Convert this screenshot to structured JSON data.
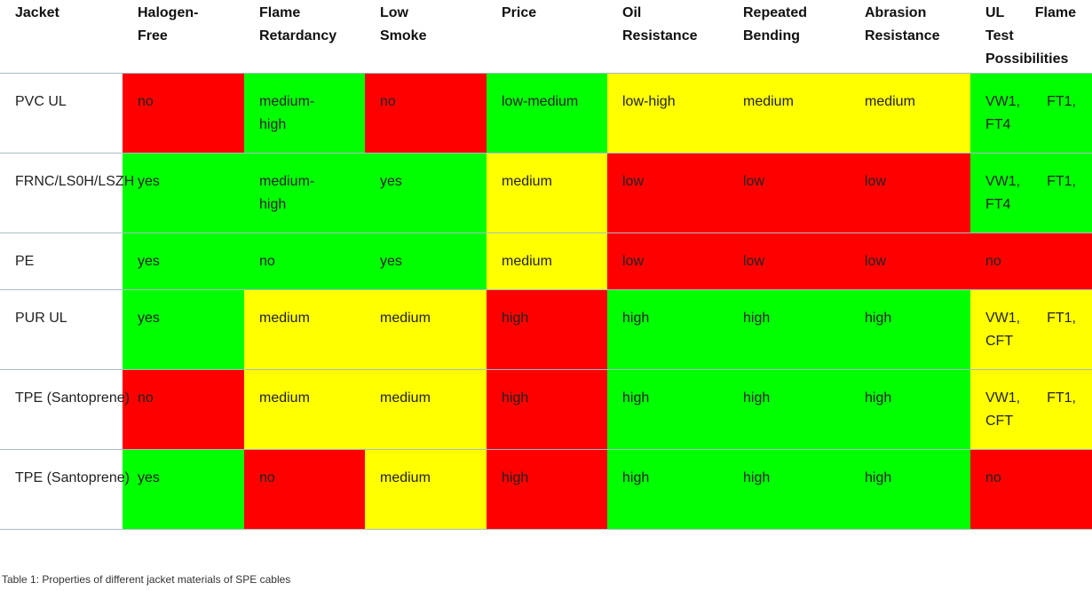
{
  "table": {
    "header": [
      "Jacket",
      "Halogen-Free",
      "Flame Retardancy",
      "Low Smoke",
      "Price",
      "Oil Resistance",
      "Repeated Bending",
      "Abrasion Resistance",
      "UL Flame Test Possibilities"
    ],
    "rows": [
      [
        "PVC UL",
        "no",
        "medium-high",
        "no",
        "low-medium",
        "low-high",
        "medium",
        "medium",
        "VW1, FT1, FT4"
      ],
      [
        "FRNC/LS0H/LSZH",
        "yes",
        "medium-high",
        "yes",
        "medium",
        "low",
        "low",
        "low",
        "VW1, FT1, FT4"
      ],
      [
        "PE",
        "yes",
        "no",
        "yes",
        "medium",
        "low",
        "low",
        "low",
        "no"
      ],
      [
        "PUR UL",
        "yes",
        "medium",
        "medium",
        "high",
        "high",
        "high",
        "high",
        "VW1, FT1, CFT"
      ],
      [
        "TPE (Santoprene)",
        "no",
        "medium",
        "medium",
        "high",
        "high",
        "high",
        "high",
        "VW1, FT1, CFT"
      ],
      [
        "TPE (Santoprene)",
        "yes",
        "no",
        "medium",
        "high",
        "high",
        "high",
        "high",
        "no"
      ]
    ],
    "fills": [
      [
        "#ff0000",
        "#00ff00",
        "#ff0000",
        "#00ff00",
        "#ffff00",
        "#ffff00",
        "#ffff00",
        "#00ff00"
      ],
      [
        "#00ff00",
        "#00ff00",
        "#00ff00",
        "#ffff00",
        "#ff0000",
        "#ff0000",
        "#ff0000",
        "#00ff00"
      ],
      [
        "#00ff00",
        "#00ff00",
        "#00ff00",
        "#ffff00",
        "#ff0000",
        "#ff0000",
        "#ff0000",
        "#ff0000"
      ],
      [
        "#00ff00",
        "#ffff00",
        "#ffff00",
        "#ff0000",
        "#00ff00",
        "#00ff00",
        "#00ff00",
        "#ffff00"
      ],
      [
        "#ff0000",
        "#ffff00",
        "#ffff00",
        "#ff0000",
        "#00ff00",
        "#00ff00",
        "#00ff00",
        "#ffff00"
      ],
      [
        "#00ff00",
        "#ff0000",
        "#ffff00",
        "#ff0000",
        "#00ff00",
        "#00ff00",
        "#00ff00",
        "#ff0000"
      ]
    ],
    "caption": "Table 1: Properties of different jacket materials of SPE cables"
  }
}
